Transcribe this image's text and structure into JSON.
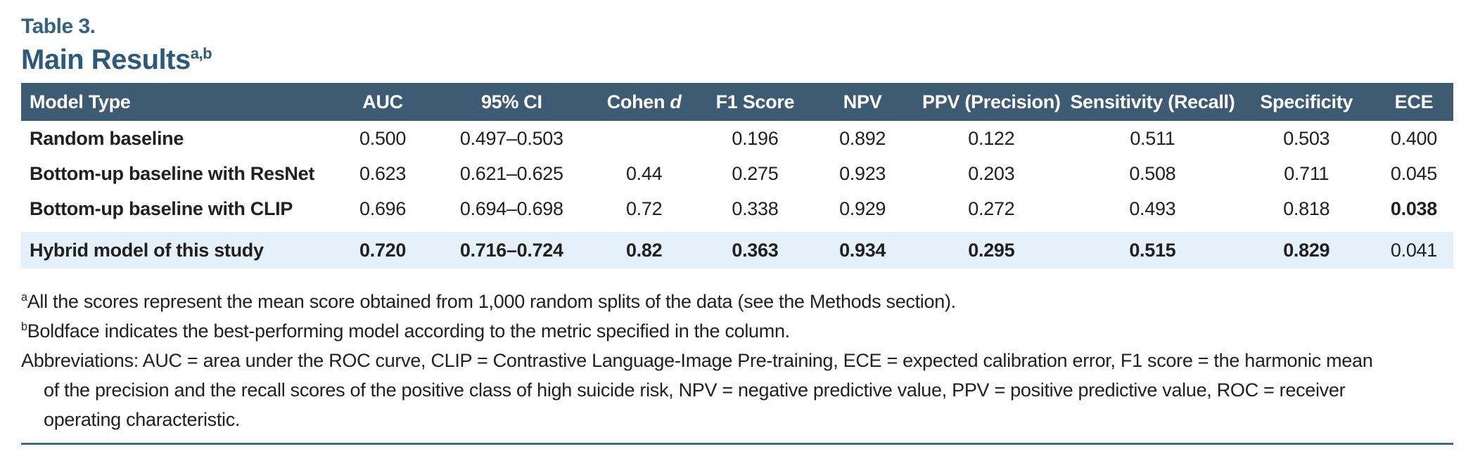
{
  "header": {
    "table_label": "Table 3.",
    "title": "Main Results",
    "title_superscript": "a,b"
  },
  "table": {
    "columns": [
      {
        "label": "Model Type"
      },
      {
        "label": "AUC"
      },
      {
        "label": "95% CI"
      },
      {
        "label": "Cohen ",
        "italic": "d"
      },
      {
        "label": "F1 Score"
      },
      {
        "label": "NPV"
      },
      {
        "label": "PPV (Precision)"
      },
      {
        "label": "Sensitivity (Recall)"
      },
      {
        "label": "Specificity"
      },
      {
        "label": "ECE"
      }
    ],
    "rows": [
      {
        "model": "Random baseline",
        "highlight": false,
        "cells": [
          {
            "text": "0.500",
            "bold": false
          },
          {
            "text": "0.497–0.503",
            "bold": false
          },
          {
            "text": "",
            "bold": false
          },
          {
            "text": "0.196",
            "bold": false
          },
          {
            "text": "0.892",
            "bold": false
          },
          {
            "text": "0.122",
            "bold": false
          },
          {
            "text": "0.511",
            "bold": false
          },
          {
            "text": "0.503",
            "bold": false
          },
          {
            "text": "0.400",
            "bold": false
          }
        ]
      },
      {
        "model": "Bottom-up baseline with ResNet",
        "highlight": false,
        "cells": [
          {
            "text": "0.623",
            "bold": false
          },
          {
            "text": "0.621–0.625",
            "bold": false
          },
          {
            "text": "0.44",
            "bold": false
          },
          {
            "text": "0.275",
            "bold": false
          },
          {
            "text": "0.923",
            "bold": false
          },
          {
            "text": "0.203",
            "bold": false
          },
          {
            "text": "0.508",
            "bold": false
          },
          {
            "text": "0.711",
            "bold": false
          },
          {
            "text": "0.045",
            "bold": false
          }
        ]
      },
      {
        "model": "Bottom-up baseline with CLIP",
        "highlight": false,
        "cells": [
          {
            "text": "0.696",
            "bold": false
          },
          {
            "text": "0.694–0.698",
            "bold": false
          },
          {
            "text": "0.72",
            "bold": false
          },
          {
            "text": "0.338",
            "bold": false
          },
          {
            "text": "0.929",
            "bold": false
          },
          {
            "text": "0.272",
            "bold": false
          },
          {
            "text": "0.493",
            "bold": false
          },
          {
            "text": "0.818",
            "bold": false
          },
          {
            "text": "0.038",
            "bold": true
          }
        ]
      },
      {
        "model": "Hybrid model of this study",
        "highlight": true,
        "cells": [
          {
            "text": "0.720",
            "bold": true
          },
          {
            "text": "0.716–0.724",
            "bold": true
          },
          {
            "text": "0.82",
            "bold": true
          },
          {
            "text": "0.363",
            "bold": true
          },
          {
            "text": "0.934",
            "bold": true
          },
          {
            "text": "0.295",
            "bold": true
          },
          {
            "text": "0.515",
            "bold": true
          },
          {
            "text": "0.829",
            "bold": true
          },
          {
            "text": "0.041",
            "bold": false
          }
        ]
      }
    ]
  },
  "footnotes": [
    {
      "sup": "a",
      "text": "All the scores represent the mean score obtained from 1,000 random splits of the data (see the Methods section)."
    },
    {
      "sup": "b",
      "text": "Boldface indicates the best-performing model according to the metric specified in the column."
    }
  ],
  "abbreviations_lines": [
    "Abbreviations: AUC = area under the ROC curve, CLIP = Contrastive Language-Image Pre-training, ECE = expected calibration error, F1 score = the harmonic mean",
    "of the precision and the recall scores of the positive class of high suicide risk, NPV = negative predictive value, PPV = positive predictive value, ROC = receiver",
    "operating characteristic."
  ],
  "colors": {
    "header_bg": "#3d5b73",
    "highlight_row": "#e4f1fa",
    "title_blue": "#2d5a7a",
    "label_blue": "#35627f",
    "bottom_rule": "#3e6b90",
    "body_text": "#221f1f"
  }
}
